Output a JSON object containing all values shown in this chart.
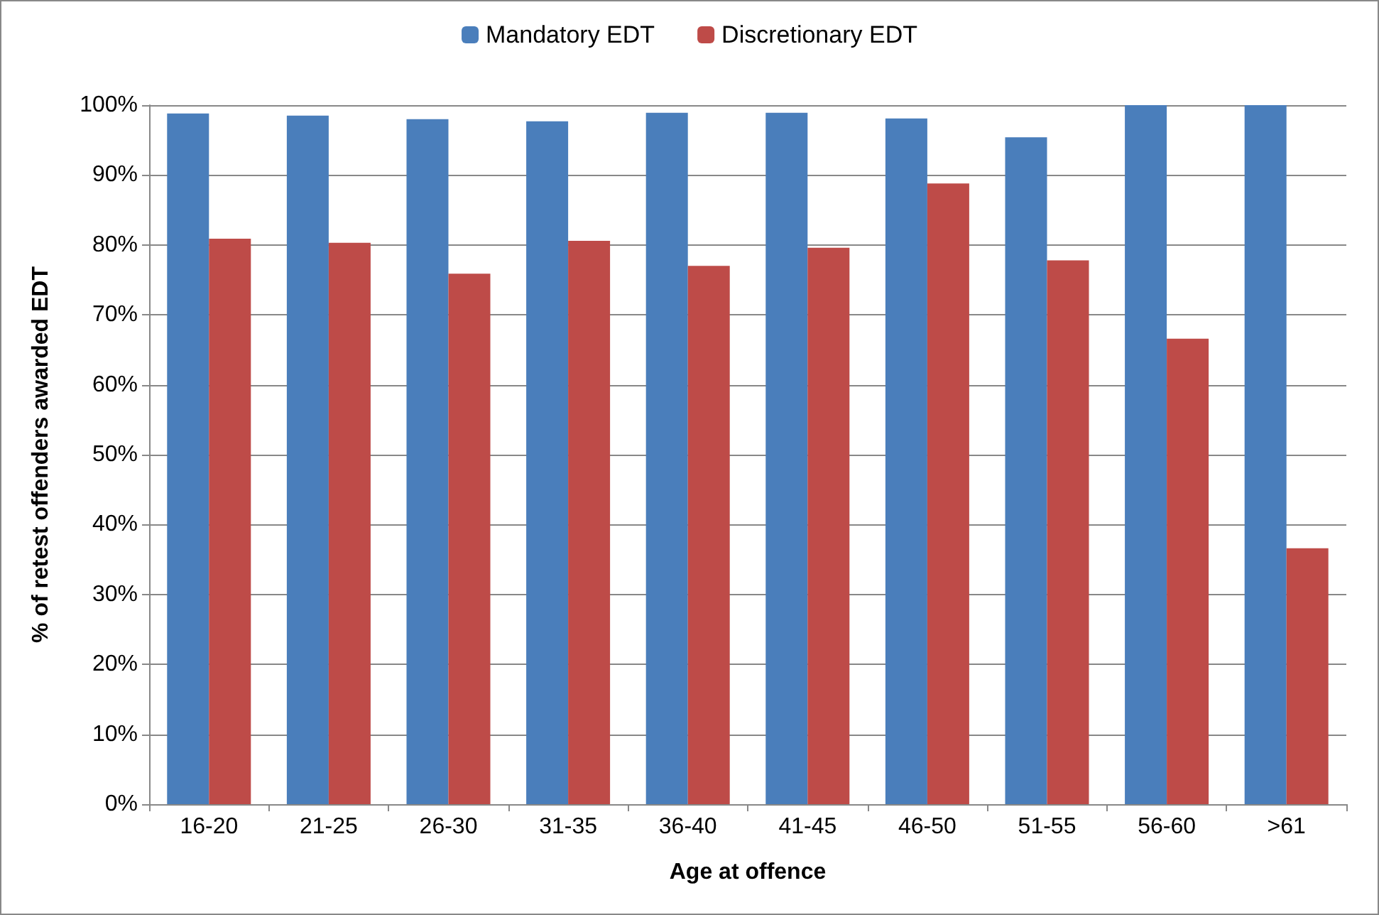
{
  "chart_data": {
    "type": "bar",
    "xlabel": "Age at offence",
    "ylabel": "% of retest offenders awarded EDT",
    "categories": [
      "16-20",
      "21-25",
      "26-30",
      "31-35",
      "36-40",
      "41-45",
      "46-50",
      "51-55",
      "56-60",
      ">61"
    ],
    "series": [
      {
        "name": "Mandatory EDT",
        "color": "#4a7ebb",
        "values": [
          98.8,
          98.5,
          98,
          97.7,
          98.9,
          98.9,
          98.1,
          95.4,
          100,
          100
        ]
      },
      {
        "name": "Discretionary EDT",
        "color": "#be4b48",
        "values": [
          80.9,
          80.3,
          75.9,
          80.6,
          77,
          79.6,
          88.8,
          77.8,
          66.6,
          36.6
        ]
      }
    ],
    "ylim": [
      0,
      100
    ],
    "yticks": [
      {
        "value": 0,
        "label": "0%"
      },
      {
        "value": 10,
        "label": "10%"
      },
      {
        "value": 20,
        "label": "20%"
      },
      {
        "value": 30,
        "label": "30%"
      },
      {
        "value": 40,
        "label": "40%"
      },
      {
        "value": 50,
        "label": "50%"
      },
      {
        "value": 60,
        "label": "60%"
      },
      {
        "value": 70,
        "label": "70%"
      },
      {
        "value": 80,
        "label": "80%"
      },
      {
        "value": 90,
        "label": "90%"
      },
      {
        "value": 100,
        "label": "100%"
      }
    ],
    "grid": "y",
    "legend": "top"
  }
}
